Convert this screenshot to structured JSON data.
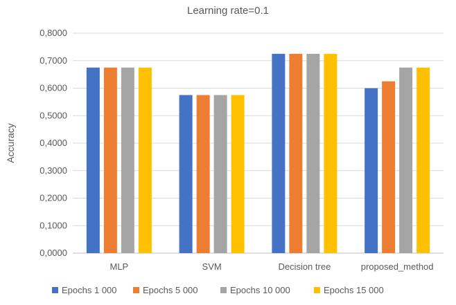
{
  "chart_data": {
    "type": "bar",
    "title": "Learning rate=0.1",
    "xlabel": "",
    "ylabel": "Accuracy",
    "ylim": [
      0,
      0.8
    ],
    "yticks": [
      "0,0000",
      "0,1000",
      "0,2000",
      "0,3000",
      "0,4000",
      "0,5000",
      "0,6000",
      "0,7000",
      "0,8000"
    ],
    "categories": [
      "MLP",
      "SVM",
      "Decision tree",
      "proposed_method"
    ],
    "series": [
      {
        "name": "Epochs 1 000",
        "color": "#4472c4",
        "values": [
          0.675,
          0.575,
          0.725,
          0.6
        ]
      },
      {
        "name": "Epochs 5 000",
        "color": "#ed7d31",
        "values": [
          0.675,
          0.575,
          0.725,
          0.625
        ]
      },
      {
        "name": "Epochs 10 000",
        "color": "#a5a5a5",
        "values": [
          0.675,
          0.575,
          0.725,
          0.675
        ]
      },
      {
        "name": "Epochs 15 000",
        "color": "#ffc000",
        "values": [
          0.675,
          0.575,
          0.725,
          0.675
        ]
      }
    ],
    "grid": true,
    "legend": "bottom"
  }
}
